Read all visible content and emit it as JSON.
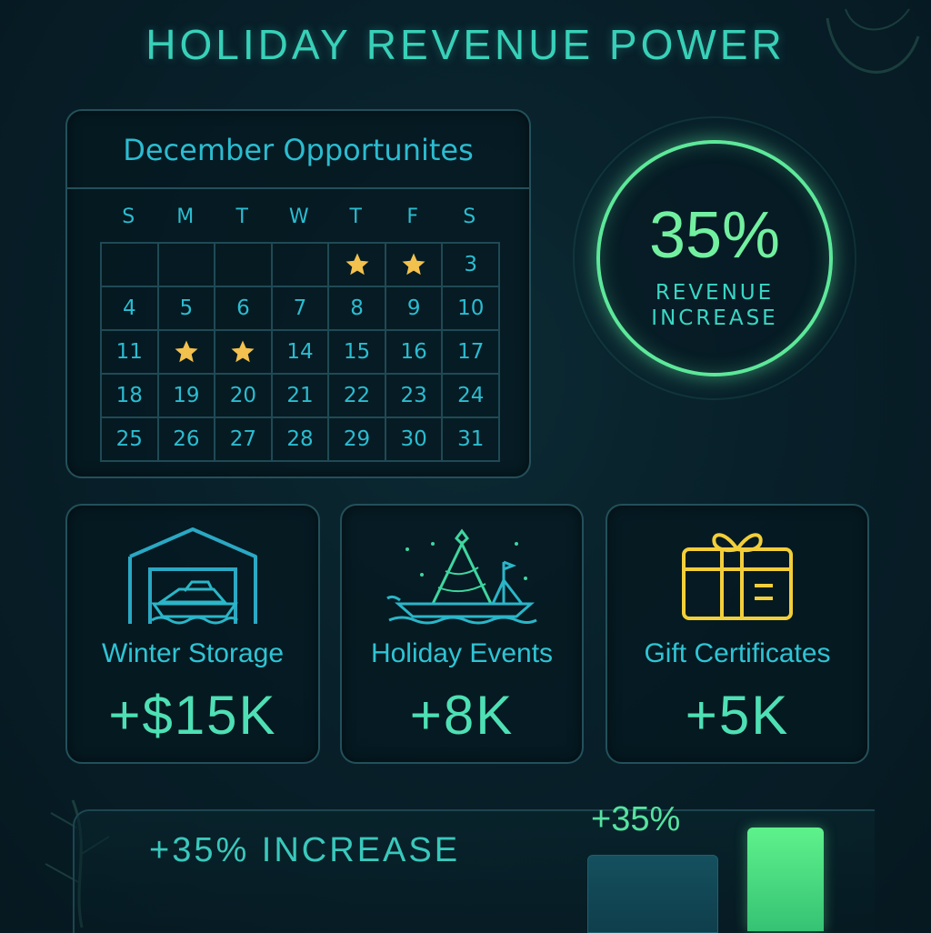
{
  "header": {
    "title": "HOLIDAY REVENUE POWER"
  },
  "calendar": {
    "title": "December Opportunites",
    "weekdays": [
      "S",
      "M",
      "T",
      "W",
      "T",
      "F",
      "S"
    ],
    "weeks": [
      [
        "",
        "",
        "",
        "",
        "★",
        "★",
        "3"
      ],
      [
        "4",
        "5",
        "6",
        "7",
        "8",
        "9",
        "10"
      ],
      [
        "11",
        "★",
        "★",
        "14",
        "15",
        "16",
        "17"
      ],
      [
        "18",
        "19",
        "20",
        "21",
        "22",
        "23",
        "24"
      ],
      [
        "25",
        "26",
        "27",
        "28",
        "29",
        "30",
        "31"
      ]
    ],
    "star_color": "#f2c14e"
  },
  "highlight": {
    "value": "35%",
    "label_line1": "REVENUE",
    "label_line2": "INCREASE",
    "ring_color": "#5de89a"
  },
  "cards": [
    {
      "icon": "boat-garage-icon",
      "label": "Winter Storage",
      "value": "+$15K"
    },
    {
      "icon": "festive-boat-tree-icon",
      "label": "Holiday Events",
      "value": "+8K"
    },
    {
      "icon": "gift-box-icon",
      "label": "Gift Certificates",
      "value": "+5K"
    }
  ],
  "summary": {
    "label": "+35% INCREASE"
  },
  "chart_data": {
    "type": "bar",
    "categories": [
      "",
      ""
    ],
    "values": [
      100,
      135
    ],
    "annotation": "+35%",
    "colors": [
      "#124654",
      "#4fdc84"
    ]
  }
}
